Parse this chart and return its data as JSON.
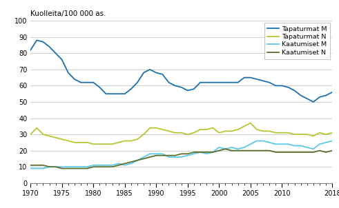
{
  "years": [
    1970,
    1971,
    1972,
    1973,
    1974,
    1975,
    1976,
    1977,
    1978,
    1979,
    1980,
    1981,
    1982,
    1983,
    1984,
    1985,
    1986,
    1987,
    1988,
    1989,
    1990,
    1991,
    1992,
    1993,
    1994,
    1995,
    1996,
    1997,
    1998,
    1999,
    2000,
    2001,
    2002,
    2003,
    2004,
    2005,
    2006,
    2007,
    2008,
    2009,
    2010,
    2011,
    2012,
    2013,
    2014,
    2015,
    2016,
    2017,
    2018
  ],
  "tapaturmat_M": [
    82,
    88,
    87,
    84,
    80,
    76,
    68,
    64,
    62,
    62,
    62,
    59,
    55,
    55,
    55,
    55,
    58,
    62,
    68,
    70,
    68,
    67,
    62,
    60,
    59,
    57,
    58,
    62,
    62,
    62,
    62,
    62,
    62,
    62,
    65,
    65,
    64,
    63,
    62,
    60,
    60,
    59,
    57,
    54,
    52,
    50,
    53,
    54,
    56
  ],
  "tapaturmat_N": [
    30,
    34,
    30,
    29,
    28,
    27,
    26,
    25,
    25,
    25,
    24,
    24,
    24,
    24,
    25,
    26,
    26,
    27,
    30,
    34,
    34,
    33,
    32,
    31,
    31,
    30,
    31,
    33,
    33,
    34,
    31,
    32,
    32,
    33,
    35,
    37,
    33,
    32,
    32,
    31,
    31,
    31,
    30,
    30,
    30,
    29,
    31,
    30,
    31
  ],
  "kaatumiset_M": [
    9,
    9,
    9,
    10,
    10,
    10,
    10,
    10,
    10,
    10,
    11,
    11,
    11,
    11,
    12,
    11,
    12,
    14,
    16,
    18,
    18,
    18,
    16,
    16,
    16,
    17,
    18,
    19,
    18,
    19,
    22,
    21,
    22,
    21,
    22,
    24,
    26,
    26,
    25,
    24,
    24,
    24,
    23,
    23,
    22,
    21,
    24,
    25,
    26
  ],
  "kaatumiset_N": [
    11,
    11,
    11,
    10,
    10,
    9,
    9,
    9,
    9,
    9,
    10,
    10,
    10,
    10,
    11,
    12,
    13,
    14,
    15,
    16,
    17,
    17,
    17,
    17,
    18,
    18,
    19,
    19,
    19,
    19,
    20,
    21,
    20,
    20,
    20,
    20,
    20,
    20,
    20,
    19,
    19,
    19,
    19,
    19,
    19,
    19,
    20,
    19,
    20
  ],
  "color_tapaturmat_M": "#1a6faf",
  "color_tapaturmat_N": "#b5c633",
  "color_kaatumiset_M": "#5bc8e8",
  "color_kaatumiset_N": "#5a6e2e",
  "ylabel": "Kuolleita/100 000 as.",
  "ylim": [
    0,
    100
  ],
  "yticks": [
    0,
    10,
    20,
    30,
    40,
    50,
    60,
    70,
    80,
    90,
    100
  ],
  "xticks_labeled": [
    1970,
    1975,
    1980,
    1985,
    1990,
    1995,
    2000,
    2005,
    2010,
    2018
  ],
  "legend_labels": [
    "Tapaturmat M",
    "Tapaturmat N",
    "Kaatumiset M",
    "Kaatumiset N"
  ],
  "line_width": 1.3,
  "background_color": "#ffffff",
  "grid_color": "#c8c8c8"
}
